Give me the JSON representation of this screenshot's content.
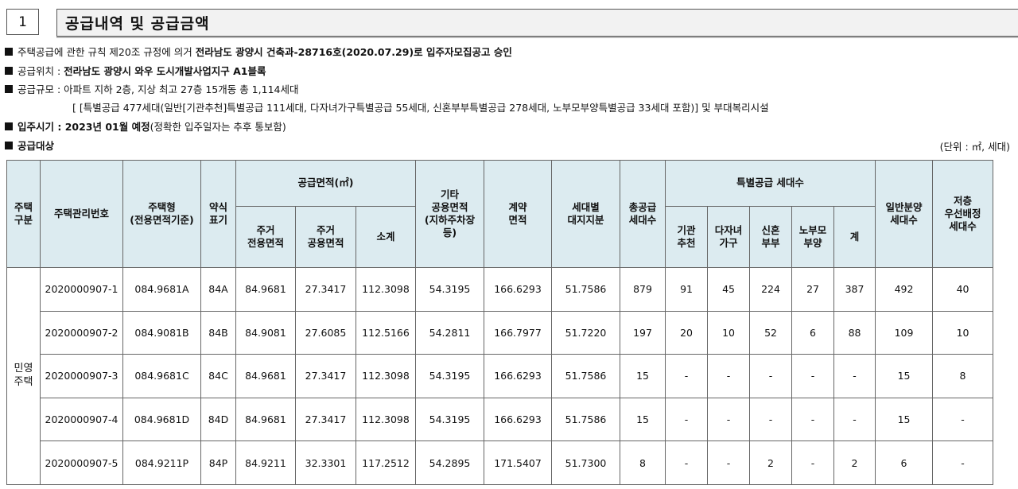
{
  "section": {
    "number": "1",
    "title": "공급내역 및 공급금액"
  },
  "bullets": {
    "rule": {
      "pre": "주택공급에 관한 규칙 제20조 규정에 의거 ",
      "bold": "전라남도 광양시 건축과-28716호(2020.07.29)로 입주자모집공고 승인"
    },
    "location": {
      "label": "공급위치 : ",
      "value": "전라남도 광양시 와우 도시개발사업지구 A1블록"
    },
    "scale": {
      "text": "공급규모 : 아파트 지하 2층, 지상 최고 27층 15개동 총 1,114세대"
    },
    "scale_detail": "[ [특별공급 477세대(일반[기관추천]특별공급 111세대, 다자녀가구특별공급 55세대, 신혼부부특별공급 278세대, 노부모부양특별공급 33세대 포함)] 및 부대복리시설",
    "move_in": {
      "bold": "입주시기 : 2023년 01월 예정",
      "rest": "(정확한 입주일자는 추후 통보함)"
    },
    "target": {
      "label": "공급대상"
    }
  },
  "unit_note": "(단위 : ㎡, 세대)",
  "table": {
    "headers": {
      "type": "주택\n구분",
      "mgmt_no": "주택관리번호",
      "house_type": "주택형\n(전용면적기준)",
      "abbr": "약식\n표기",
      "supply_area": "공급면적(㎡)",
      "excl": "주거\n전용면적",
      "common": "주거\n공용면적",
      "subtotal": "소계",
      "other_common": "기타\n공용면적\n(지하주차장\n등)",
      "contract_area": "계약\n면적",
      "land_share": "세대별\n대지지분",
      "total_units": "총공급\n세대수",
      "special": "특별공급 세대수",
      "inst": "기관\n추천",
      "multi": "다자녀\n가구",
      "newlywed": "신혼\n부부",
      "elder": "노부모\n부양",
      "sp_total": "계",
      "general": "일반분양\n세대수",
      "low_floor": "저층\n우선배정\n세대수"
    },
    "group_label": "민영\n주택",
    "rows": [
      {
        "no": "2020000907-1",
        "type": "084.9681A",
        "abbr": "84A",
        "excl": "84.9681",
        "common": "27.3417",
        "subtotal": "112.3098",
        "other": "54.3195",
        "contract": "166.6293",
        "land": "51.7586",
        "total": "879",
        "inst": "91",
        "multi": "45",
        "newlywed": "224",
        "elder": "27",
        "sp_total": "387",
        "general": "492",
        "low": "40"
      },
      {
        "no": "2020000907-2",
        "type": "084.9081B",
        "abbr": "84B",
        "excl": "84.9081",
        "common": "27.6085",
        "subtotal": "112.5166",
        "other": "54.2811",
        "contract": "166.7977",
        "land": "51.7220",
        "total": "197",
        "inst": "20",
        "multi": "10",
        "newlywed": "52",
        "elder": "6",
        "sp_total": "88",
        "general": "109",
        "low": "10"
      },
      {
        "no": "2020000907-3",
        "type": "084.9681C",
        "abbr": "84C",
        "excl": "84.9681",
        "common": "27.3417",
        "subtotal": "112.3098",
        "other": "54.3195",
        "contract": "166.6293",
        "land": "51.7586",
        "total": "15",
        "inst": "-",
        "multi": "-",
        "newlywed": "-",
        "elder": "-",
        "sp_total": "-",
        "general": "15",
        "low": "8"
      },
      {
        "no": "2020000907-4",
        "type": "084.9681D",
        "abbr": "84D",
        "excl": "84.9681",
        "common": "27.3417",
        "subtotal": "112.3098",
        "other": "54.3195",
        "contract": "166.6293",
        "land": "51.7586",
        "total": "15",
        "inst": "-",
        "multi": "-",
        "newlywed": "-",
        "elder": "-",
        "sp_total": "-",
        "general": "15",
        "low": "-"
      },
      {
        "no": "2020000907-5",
        "type": "084.9211P",
        "abbr": "84P",
        "excl": "84.9211",
        "common": "32.3301",
        "subtotal": "117.2512",
        "other": "54.2895",
        "contract": "171.5407",
        "land": "51.7300",
        "total": "8",
        "inst": "-",
        "multi": "-",
        "newlywed": "2",
        "elder": "-",
        "sp_total": "2",
        "general": "6",
        "low": "-"
      }
    ]
  }
}
